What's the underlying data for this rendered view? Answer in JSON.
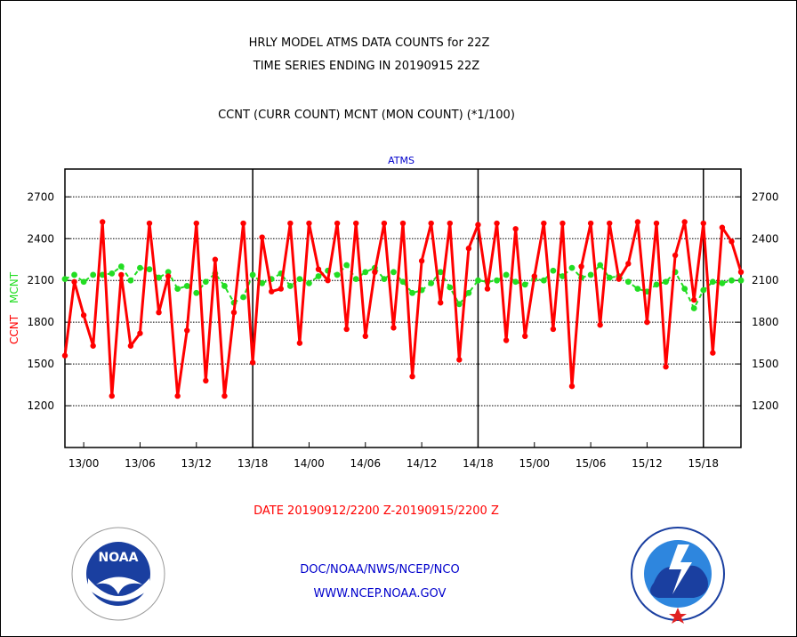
{
  "header": {
    "title_line1": "HRLY MODEL ATMS DATA COUNTS for 22Z",
    "title_line2": "TIME SERIES ENDING IN 20190915 22Z",
    "subtitle": "CCNT (CURR COUNT) MCNT (MON COUNT) (*1/100)"
  },
  "footer": {
    "date_range": "DATE 20190912/2200 Z-20190915/2200 Z",
    "org": "DOC/NOAA/NWS/NCEP/NCO",
    "url": "WWW.NCEP.NOAA.GOV"
  },
  "logos": {
    "noaa": {
      "label": "NOAA",
      "ring_text": "NATIONAL OCEANIC AND ATMOSPHERIC ADMINISTRATION · U.S. DEPARTMENT OF COMMERCE"
    },
    "nws": {
      "ring_text": "NATIONAL WEATHER SERVICE"
    }
  },
  "colors": {
    "ccnt": "#ff0000",
    "mcnt": "#22dd22",
    "title": "#000000",
    "date": "#ff0000",
    "footer": "#0000cc",
    "panel_label": "#0000cc"
  },
  "chart_data": {
    "type": "line",
    "panel_label": "ATMS",
    "ylabel_parts": [
      "CCNT",
      "MCNT"
    ],
    "ylim": [
      900,
      2900
    ],
    "yticks": [
      1200,
      1500,
      1800,
      2100,
      2400,
      2700
    ],
    "x_tick_labels": [
      "13/00",
      "13/06",
      "13/12",
      "13/18",
      "14/00",
      "14/06",
      "14/12",
      "14/18",
      "15/00",
      "15/06",
      "15/12",
      "15/18"
    ],
    "x_tick_hour_index": [
      2,
      8,
      14,
      20,
      26,
      32,
      38,
      44,
      50,
      56,
      62,
      68
    ],
    "day_separator_hour_index": [
      20,
      44,
      68
    ],
    "x_hour_range": [
      0,
      72
    ],
    "grid": true,
    "series": [
      {
        "name": "CCNT",
        "color": "#ff0000",
        "values": [
          1560,
          2090,
          1850,
          1630,
          2520,
          1270,
          2140,
          1630,
          1720,
          2510,
          1870,
          2130,
          1270,
          1740,
          2510,
          1380,
          2250,
          1270,
          1870,
          2510,
          1510,
          2410,
          2020,
          2040,
          2510,
          1650,
          2510,
          2180,
          2100,
          2510,
          1750,
          2510,
          1700,
          2160,
          2510,
          1760,
          2510,
          1410,
          2240,
          2510,
          1940,
          2510,
          1530,
          2330,
          2500,
          2040,
          2510,
          1670,
          2470,
          1700,
          2130,
          2510,
          1750,
          2510,
          1340,
          2200,
          2510,
          1780,
          2510,
          2110,
          2220,
          2520,
          1800,
          2510,
          1480,
          2280,
          2520,
          1960,
          2510,
          1580,
          2480,
          2380,
          2160
        ]
      },
      {
        "name": "MCNT",
        "color": "#22dd22",
        "values": [
          2110,
          2140,
          2090,
          2140,
          2140,
          2150,
          2200,
          2100,
          2190,
          2180,
          2120,
          2160,
          2040,
          2060,
          2010,
          2090,
          2150,
          2060,
          1940,
          1980,
          2140,
          2080,
          2110,
          2150,
          2060,
          2110,
          2080,
          2130,
          2170,
          2140,
          2210,
          2110,
          2160,
          2190,
          2110,
          2160,
          2090,
          2010,
          2030,
          2080,
          2160,
          2050,
          1930,
          2010,
          2100,
          2090,
          2100,
          2140,
          2090,
          2070,
          2110,
          2100,
          2170,
          2130,
          2190,
          2120,
          2140,
          2210,
          2120,
          2130,
          2090,
          2040,
          2020,
          2070,
          2090,
          2160,
          2040,
          1900,
          2030,
          2090,
          2080,
          2100,
          2100
        ]
      }
    ]
  }
}
